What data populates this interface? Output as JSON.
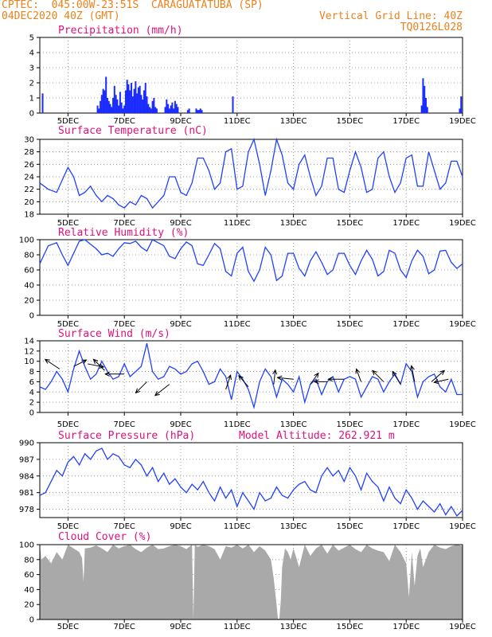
{
  "header": {
    "line1_left": "CPTEC:  045:00W-23:51S  CARAGUATATUBA (SP)",
    "line2_left": "04DEC2020 40Z (GMT)",
    "line2_right": "Vertical Grid Line: 40Z",
    "line3_right": "TQ0126L028"
  },
  "colors": {
    "line": "#2040ff",
    "bar": "#1a2cff",
    "cloud": "#a9a9a9",
    "title": "#e0107a",
    "header": "#e8821e",
    "grid": "#888888"
  },
  "x_dates": [
    "5DEC",
    "7DEC",
    "9DEC",
    "11DEC",
    "13DEC",
    "15DEC",
    "17DEC",
    "19DEC"
  ],
  "chart_data": [
    {
      "type": "bar",
      "title": "Precipitation (mm/h)",
      "ylim": [
        0,
        5
      ],
      "yticks": [
        "0",
        "1",
        "2",
        "3",
        "4",
        "5"
      ],
      "x": [
        4.1,
        6.05,
        6.1,
        6.15,
        6.2,
        6.25,
        6.3,
        6.35,
        6.4,
        6.45,
        6.5,
        6.55,
        6.6,
        6.65,
        6.7,
        6.75,
        6.8,
        6.85,
        6.9,
        6.95,
        7.0,
        7.05,
        7.1,
        7.15,
        7.2,
        7.25,
        7.3,
        7.35,
        7.4,
        7.45,
        7.5,
        7.55,
        7.6,
        7.65,
        7.7,
        7.75,
        7.8,
        7.85,
        7.9,
        7.95,
        8.0,
        8.05,
        8.1,
        8.15,
        8.45,
        8.5,
        8.55,
        8.6,
        8.65,
        8.7,
        8.75,
        8.8,
        8.85,
        8.9,
        9.25,
        9.3,
        9.55,
        9.6,
        9.65,
        9.7,
        9.75,
        10.85,
        17.55,
        17.6,
        17.65,
        17.7,
        17.75,
        18.9,
        18.95
      ],
      "values": [
        1.3,
        0.5,
        0.3,
        0.8,
        1.2,
        1.6,
        1.5,
        2.4,
        1.0,
        0.8,
        0.6,
        0.4,
        1.0,
        1.8,
        1.2,
        0.9,
        0.5,
        1.4,
        0.7,
        0.3,
        0.5,
        1.5,
        2.2,
        1.9,
        1.5,
        2.0,
        1.1,
        1.6,
        2.1,
        1.3,
        1.7,
        1.8,
        1.2,
        0.9,
        1.5,
        2.0,
        1.1,
        0.6,
        0.4,
        0.3,
        0.8,
        1.0,
        0.4,
        0.3,
        0.4,
        0.9,
        0.6,
        0.3,
        0.5,
        0.7,
        0.3,
        0.8,
        0.6,
        0.4,
        0.2,
        0.3,
        0.3,
        0.2,
        0.2,
        0.3,
        0.2,
        1.1,
        0.5,
        2.3,
        1.8,
        1.0,
        0.4,
        0.3,
        1.1
      ]
    },
    {
      "type": "line",
      "title": "Surface Temperature (nC)",
      "ylim": [
        18,
        30
      ],
      "yticks": [
        "18",
        "20",
        "22",
        "24",
        "26",
        "28",
        "30"
      ],
      "x": [
        4.0,
        4.3,
        4.6,
        4.8,
        5.0,
        5.2,
        5.4,
        5.6,
        5.8,
        6.0,
        6.2,
        6.4,
        6.6,
        6.8,
        7.0,
        7.2,
        7.4,
        7.6,
        7.8,
        8.0,
        8.2,
        8.4,
        8.6,
        8.8,
        9.0,
        9.2,
        9.4,
        9.6,
        9.8,
        10.0,
        10.2,
        10.4,
        10.6,
        10.8,
        11.0,
        11.2,
        11.4,
        11.6,
        11.8,
        12.0,
        12.2,
        12.4,
        12.6,
        12.8,
        13.0,
        13.2,
        13.4,
        13.6,
        13.8,
        14.0,
        14.2,
        14.4,
        14.6,
        14.8,
        15.0,
        15.2,
        15.4,
        15.6,
        15.8,
        16.0,
        16.2,
        16.4,
        16.6,
        16.8,
        17.0,
        17.2,
        17.4,
        17.6,
        17.8,
        18.0,
        18.2,
        18.4,
        18.6,
        18.8,
        19.0
      ],
      "values": [
        23.0,
        22.0,
        21.5,
        23.5,
        25.5,
        24.0,
        21.0,
        21.5,
        22.5,
        21.0,
        20.0,
        21.0,
        20.5,
        19.5,
        19.0,
        20.0,
        19.5,
        21.0,
        20.5,
        19.0,
        20.0,
        21.0,
        24.0,
        24.0,
        21.5,
        21.0,
        23.0,
        27.0,
        27.0,
        25.0,
        22.0,
        23.0,
        28.0,
        28.5,
        22.0,
        22.5,
        28.0,
        30.0,
        26.0,
        21.0,
        25.0,
        30.0,
        27.5,
        23.0,
        22.0,
        26.0,
        27.5,
        24.0,
        21.0,
        22.5,
        27.0,
        27.0,
        22.0,
        21.5,
        25.0,
        28.0,
        25.5,
        21.5,
        22.0,
        27.0,
        28.0,
        24.0,
        21.5,
        23.0,
        27.0,
        27.5,
        22.5,
        22.5,
        28.0,
        25.0,
        22.0,
        23.0,
        26.5,
        26.5,
        24.0
      ]
    },
    {
      "type": "line",
      "title": "Relative Humidity (%)",
      "ylim": [
        0,
        100
      ],
      "yticks": [
        "0",
        "20",
        "40",
        "60",
        "80",
        "100"
      ],
      "x": [
        4.0,
        4.3,
        4.6,
        4.8,
        5.0,
        5.2,
        5.4,
        5.6,
        5.8,
        6.0,
        6.2,
        6.4,
        6.6,
        6.8,
        7.0,
        7.2,
        7.4,
        7.6,
        7.8,
        8.0,
        8.2,
        8.4,
        8.6,
        8.8,
        9.0,
        9.2,
        9.4,
        9.6,
        9.8,
        10.0,
        10.2,
        10.4,
        10.6,
        10.8,
        11.0,
        11.2,
        11.4,
        11.6,
        11.8,
        12.0,
        12.2,
        12.4,
        12.6,
        12.8,
        13.0,
        13.2,
        13.4,
        13.6,
        13.8,
        14.0,
        14.2,
        14.4,
        14.6,
        14.8,
        15.0,
        15.2,
        15.4,
        15.6,
        15.8,
        16.0,
        16.2,
        16.4,
        16.6,
        16.8,
        17.0,
        17.2,
        17.4,
        17.6,
        17.8,
        18.0,
        18.2,
        18.4,
        18.6,
        18.8,
        19.0
      ],
      "values": [
        68,
        92,
        96,
        80,
        66,
        82,
        98,
        100,
        94,
        88,
        80,
        82,
        78,
        88,
        96,
        95,
        98,
        90,
        85,
        100,
        96,
        92,
        78,
        75,
        88,
        97,
        92,
        68,
        66,
        80,
        95,
        88,
        58,
        52,
        82,
        90,
        58,
        45,
        60,
        90,
        80,
        46,
        52,
        82,
        82,
        62,
        52,
        72,
        84,
        70,
        54,
        60,
        82,
        82,
        66,
        54,
        72,
        86,
        74,
        52,
        58,
        86,
        82,
        60,
        50,
        72,
        86,
        78,
        55,
        60,
        85,
        86,
        70,
        62,
        68
      ]
    },
    {
      "type": "line",
      "title": "Surface Wind (m/s)",
      "ylim": [
        0,
        14
      ],
      "yticks": [
        "0",
        "2",
        "4",
        "6",
        "8",
        "10",
        "12",
        "14"
      ],
      "x": [
        4.0,
        4.2,
        4.4,
        4.6,
        4.8,
        5.0,
        5.2,
        5.4,
        5.6,
        5.8,
        6.0,
        6.2,
        6.4,
        6.6,
        6.8,
        7.0,
        7.2,
        7.4,
        7.6,
        7.8,
        8.0,
        8.2,
        8.4,
        8.6,
        8.8,
        9.0,
        9.2,
        9.4,
        9.6,
        9.8,
        10.0,
        10.2,
        10.4,
        10.6,
        10.8,
        11.0,
        11.2,
        11.4,
        11.6,
        11.8,
        12.0,
        12.2,
        12.4,
        12.6,
        12.8,
        13.0,
        13.2,
        13.4,
        13.6,
        13.8,
        14.0,
        14.2,
        14.4,
        14.6,
        14.8,
        15.0,
        15.2,
        15.4,
        15.6,
        15.8,
        16.0,
        16.2,
        16.4,
        16.6,
        16.8,
        17.0,
        17.2,
        17.4,
        17.6,
        17.8,
        18.0,
        18.2,
        18.4,
        18.6,
        18.8,
        19.0
      ],
      "values": [
        5.0,
        4.5,
        6.0,
        8.0,
        6.5,
        4.0,
        8.5,
        12.0,
        9.0,
        6.5,
        7.5,
        10.0,
        8.0,
        6.5,
        7.0,
        9.5,
        7.0,
        8.0,
        9.0,
        13.5,
        8.0,
        6.5,
        7.0,
        9.0,
        8.5,
        7.5,
        8.0,
        9.5,
        10.0,
        8.0,
        5.5,
        6.0,
        8.5,
        7.0,
        2.5,
        8.0,
        6.5,
        4.5,
        1.0,
        6.0,
        8.5,
        7.0,
        3.0,
        6.5,
        5.5,
        4.0,
        7.0,
        2.0,
        5.5,
        6.5,
        3.5,
        6.0,
        7.0,
        4.0,
        6.5,
        7.0,
        6.5,
        3.0,
        5.0,
        7.0,
        6.5,
        4.0,
        6.0,
        7.5,
        5.5,
        9.5,
        8.0,
        3.0,
        6.0,
        7.0,
        7.5,
        5.0,
        4.0,
        6.5,
        3.5,
        3.5
      ]
    },
    {
      "type": "line",
      "title": "Surface Pressure (hPa)",
      "annotation": "Model Altitude: 262.921 m",
      "ylim": [
        976.5,
        990
      ],
      "yticks": [
        "978",
        "981",
        "984",
        "987",
        "990"
      ],
      "x": [
        4.0,
        4.2,
        4.4,
        4.6,
        4.8,
        5.0,
        5.2,
        5.4,
        5.6,
        5.8,
        6.0,
        6.2,
        6.4,
        6.6,
        6.8,
        7.0,
        7.2,
        7.4,
        7.6,
        7.8,
        8.0,
        8.2,
        8.4,
        8.6,
        8.8,
        9.0,
        9.2,
        9.4,
        9.6,
        9.8,
        10.0,
        10.2,
        10.4,
        10.6,
        10.8,
        11.0,
        11.2,
        11.4,
        11.6,
        11.8,
        12.0,
        12.2,
        12.4,
        12.6,
        12.8,
        13.0,
        13.2,
        13.4,
        13.6,
        13.8,
        14.0,
        14.2,
        14.4,
        14.6,
        14.8,
        15.0,
        15.2,
        15.4,
        15.6,
        15.8,
        16.0,
        16.2,
        16.4,
        16.6,
        16.8,
        17.0,
        17.2,
        17.4,
        17.6,
        17.8,
        18.0,
        18.2,
        18.4,
        18.6,
        18.8,
        19.0
      ],
      "values": [
        980.5,
        981.0,
        983.0,
        985.0,
        984.0,
        986.5,
        987.5,
        986.0,
        988.0,
        987.0,
        988.5,
        989.0,
        987.0,
        988.0,
        987.5,
        986.0,
        985.5,
        987.0,
        986.0,
        984.0,
        985.5,
        983.0,
        984.5,
        982.5,
        983.5,
        982.0,
        981.0,
        982.5,
        981.5,
        983.0,
        981.0,
        979.5,
        982.0,
        980.0,
        981.5,
        978.5,
        981.0,
        979.5,
        978.0,
        981.0,
        979.5,
        980.0,
        982.0,
        980.5,
        980.0,
        981.5,
        982.5,
        983.0,
        981.5,
        981.0,
        984.0,
        985.5,
        984.0,
        985.0,
        983.0,
        985.5,
        984.0,
        981.5,
        984.5,
        983.0,
        982.0,
        979.5,
        982.0,
        980.0,
        979.0,
        981.5,
        980.0,
        978.0,
        979.5,
        978.5,
        977.5,
        979.0,
        977.0,
        978.5,
        976.8,
        977.8
      ]
    },
    {
      "type": "area",
      "title": "Cloud Cover (%)",
      "ylim": [
        0,
        100
      ],
      "yticks": [
        "0",
        "20",
        "40",
        "60",
        "80",
        "100"
      ],
      "x": [
        4.0,
        4.05,
        4.2,
        4.4,
        4.6,
        4.8,
        5.0,
        5.2,
        5.4,
        5.5,
        5.55,
        5.6,
        5.8,
        6.0,
        6.2,
        6.4,
        6.6,
        6.8,
        7.0,
        7.2,
        7.4,
        7.6,
        7.8,
        8.0,
        8.2,
        8.4,
        8.6,
        8.8,
        9.0,
        9.2,
        9.4,
        9.45,
        9.5,
        9.6,
        9.8,
        10.0,
        10.2,
        10.4,
        10.6,
        10.8,
        11.0,
        11.2,
        11.4,
        11.6,
        11.8,
        12.0,
        12.2,
        12.3,
        12.4,
        12.45,
        12.5,
        12.55,
        12.6,
        12.7,
        12.8,
        12.9,
        13.0,
        13.2,
        13.4,
        13.6,
        13.8,
        14.0,
        14.2,
        14.4,
        14.6,
        14.8,
        15.0,
        15.2,
        15.4,
        15.6,
        15.8,
        16.0,
        16.2,
        16.4,
        16.6,
        16.8,
        17.0,
        17.1,
        17.2,
        17.3,
        17.4,
        17.5,
        17.6,
        17.8,
        18.0,
        18.2,
        18.4,
        18.6,
        18.8,
        19.0
      ],
      "values": [
        100,
        80,
        85,
        75,
        90,
        80,
        100,
        95,
        90,
        82,
        50,
        95,
        96,
        99,
        95,
        90,
        100,
        95,
        98,
        100,
        94,
        90,
        96,
        100,
        94,
        95,
        98,
        100,
        98,
        94,
        100,
        0,
        100,
        97,
        100,
        98,
        94,
        80,
        98,
        96,
        100,
        95,
        100,
        90,
        98,
        92,
        80,
        55,
        20,
        1,
        1,
        25,
        70,
        95,
        90,
        80,
        95,
        70,
        100,
        85,
        95,
        100,
        88,
        100,
        92,
        96,
        100,
        94,
        90,
        100,
        95,
        92,
        90,
        78,
        100,
        90,
        75,
        30,
        90,
        45,
        85,
        95,
        70,
        90,
        100,
        96,
        94,
        98,
        100,
        98
      ]
    }
  ]
}
